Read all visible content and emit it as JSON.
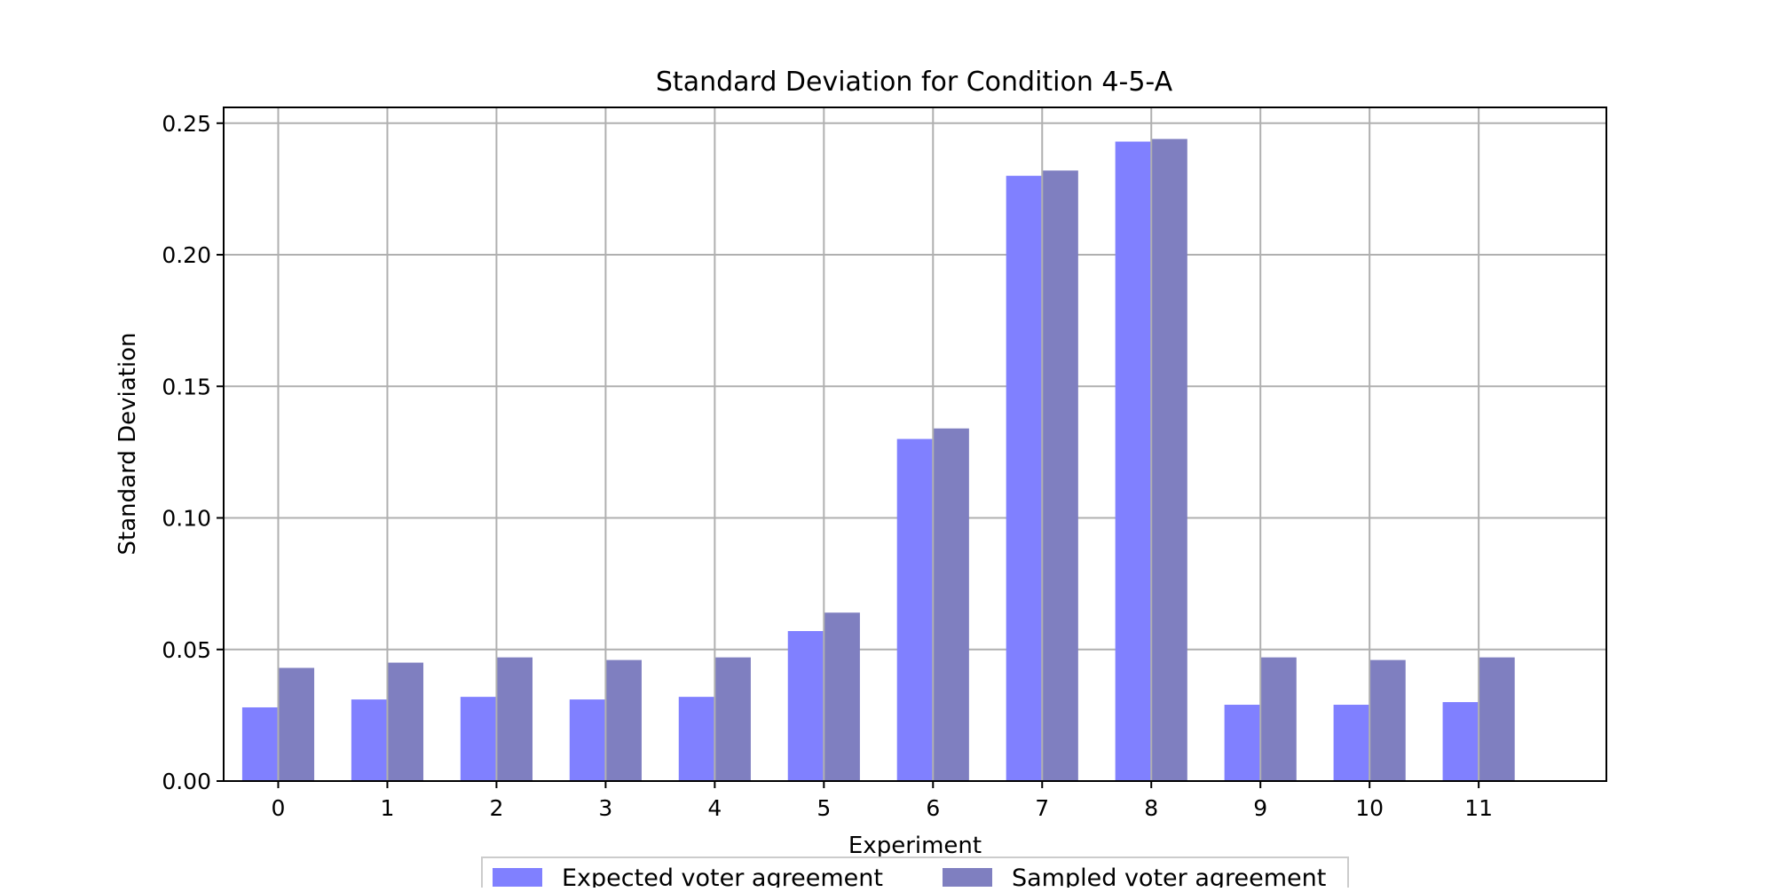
{
  "chart_data": {
    "type": "bar",
    "title": "Standard Deviation for Condition 4-5-A",
    "xlabel": "Experiment",
    "ylabel": "Standard Deviation",
    "categories": [
      "0",
      "1",
      "2",
      "3",
      "4",
      "5",
      "6",
      "7",
      "8",
      "9",
      "10",
      "11"
    ],
    "series": [
      {
        "name": "Expected voter agreement",
        "color": "#8080ff",
        "values": [
          0.028,
          0.031,
          0.032,
          0.031,
          0.032,
          0.057,
          0.13,
          0.23,
          0.243,
          0.029,
          0.029,
          0.03
        ]
      },
      {
        "name": "Sampled voter agreement",
        "color": "#7f7fc0",
        "values": [
          0.043,
          0.045,
          0.047,
          0.046,
          0.047,
          0.064,
          0.134,
          0.232,
          0.244,
          0.047,
          0.046,
          0.047
        ]
      }
    ],
    "ylim": [
      0,
      0.256
    ],
    "xlim": [
      -0.5,
      12.17
    ],
    "yticks": [
      "0.00",
      "0.05",
      "0.10",
      "0.15",
      "0.20",
      "0.25"
    ],
    "grid": true,
    "legend": "bottom-center"
  }
}
